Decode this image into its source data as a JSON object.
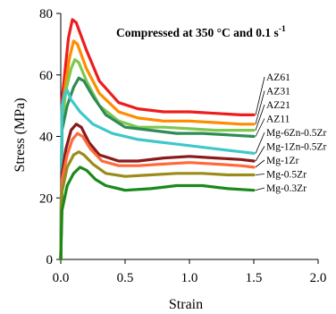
{
  "chart_data": {
    "type": "line",
    "title": "",
    "annotation": {
      "main": "Compressed at 350 °C and 0.1 s",
      "superscript": "-1"
    },
    "xlabel": "Strain",
    "ylabel": "Stress (MPa)",
    "xlim": [
      0,
      2.0
    ],
    "ylim": [
      0,
      80
    ],
    "xticks": [
      0,
      0.5,
      1.0,
      1.5,
      2.0
    ],
    "xtick_labels": [
      "0.0",
      "0.5",
      "1.0",
      "1.5",
      "2.0"
    ],
    "yticks": [
      0,
      20,
      40,
      60,
      80
    ],
    "ytick_labels": [
      "0",
      "20",
      "40",
      "60",
      "80"
    ],
    "grid": false,
    "legend_placement": "right of curve ends",
    "series": [
      {
        "name": "AZ61",
        "color": "#ee1c1c",
        "points": [
          [
            0,
            0
          ],
          [
            0.01,
            52
          ],
          [
            0.03,
            60
          ],
          [
            0.06,
            72
          ],
          [
            0.09,
            78
          ],
          [
            0.12,
            77
          ],
          [
            0.2,
            68
          ],
          [
            0.3,
            58
          ],
          [
            0.45,
            51
          ],
          [
            0.6,
            49
          ],
          [
            0.8,
            48
          ],
          [
            1.0,
            48
          ],
          [
            1.2,
            47.5
          ],
          [
            1.4,
            47
          ],
          [
            1.5,
            47
          ]
        ]
      },
      {
        "name": "AZ31",
        "color": "#ff8c00",
        "points": [
          [
            0,
            0
          ],
          [
            0.01,
            48
          ],
          [
            0.04,
            58
          ],
          [
            0.07,
            66
          ],
          [
            0.1,
            71
          ],
          [
            0.13,
            70
          ],
          [
            0.2,
            62
          ],
          [
            0.3,
            54
          ],
          [
            0.45,
            48
          ],
          [
            0.6,
            46
          ],
          [
            0.8,
            45
          ],
          [
            1.0,
            45
          ],
          [
            1.2,
            44.5
          ],
          [
            1.4,
            44
          ],
          [
            1.5,
            44
          ]
        ]
      },
      {
        "name": "AZ21",
        "color": "#7ec850",
        "points": [
          [
            0,
            0
          ],
          [
            0.01,
            44
          ],
          [
            0.04,
            55
          ],
          [
            0.08,
            62
          ],
          [
            0.11,
            65
          ],
          [
            0.14,
            64
          ],
          [
            0.2,
            58
          ],
          [
            0.3,
            50
          ],
          [
            0.45,
            45
          ],
          [
            0.6,
            43
          ],
          [
            0.8,
            43
          ],
          [
            1.0,
            42.5
          ],
          [
            1.2,
            42
          ],
          [
            1.4,
            42
          ],
          [
            1.5,
            42
          ]
        ]
      },
      {
        "name": "AZ11",
        "color": "#2e8b57",
        "points": [
          [
            0,
            0
          ],
          [
            0.01,
            42
          ],
          [
            0.05,
            50
          ],
          [
            0.1,
            56
          ],
          [
            0.14,
            59
          ],
          [
            0.18,
            58
          ],
          [
            0.25,
            53
          ],
          [
            0.35,
            47
          ],
          [
            0.5,
            43
          ],
          [
            0.7,
            42
          ],
          [
            0.9,
            41
          ],
          [
            1.1,
            41
          ],
          [
            1.3,
            40.5
          ],
          [
            1.5,
            40
          ]
        ]
      },
      {
        "name": "Mg-6Zn-0.5Zr",
        "color": "#40c8c8",
        "points": [
          [
            0,
            0
          ],
          [
            0.01,
            50
          ],
          [
            0.03,
            54
          ],
          [
            0.05,
            55
          ],
          [
            0.08,
            52
          ],
          [
            0.15,
            48
          ],
          [
            0.25,
            44
          ],
          [
            0.4,
            41
          ],
          [
            0.6,
            39
          ],
          [
            0.8,
            38
          ],
          [
            1.0,
            37
          ],
          [
            1.2,
            36
          ],
          [
            1.4,
            35
          ],
          [
            1.5,
            34.5
          ]
        ]
      },
      {
        "name": "Mg-1Zn-0.5Zr",
        "color": "#8b1a1a",
        "points": [
          [
            0,
            0
          ],
          [
            0.01,
            28
          ],
          [
            0.04,
            36
          ],
          [
            0.08,
            42
          ],
          [
            0.12,
            44
          ],
          [
            0.16,
            43
          ],
          [
            0.22,
            38
          ],
          [
            0.3,
            34
          ],
          [
            0.45,
            32
          ],
          [
            0.6,
            32
          ],
          [
            0.8,
            33
          ],
          [
            1.0,
            33.5
          ],
          [
            1.2,
            33
          ],
          [
            1.4,
            32.5
          ],
          [
            1.5,
            32
          ]
        ]
      },
      {
        "name": "Mg-1Zr",
        "color": "#ff6a3d",
        "points": [
          [
            0,
            0
          ],
          [
            0.01,
            26
          ],
          [
            0.05,
            34
          ],
          [
            0.09,
            39
          ],
          [
            0.13,
            41
          ],
          [
            0.17,
            40
          ],
          [
            0.23,
            36
          ],
          [
            0.32,
            32
          ],
          [
            0.45,
            30.5
          ],
          [
            0.6,
            30.5
          ],
          [
            0.8,
            31
          ],
          [
            1.0,
            31.5
          ],
          [
            1.2,
            31
          ],
          [
            1.4,
            30.5
          ],
          [
            1.5,
            30
          ]
        ]
      },
      {
        "name": "Mg-0.5Zr",
        "color": "#9a8c1a",
        "points": [
          [
            0,
            0
          ],
          [
            0.01,
            22
          ],
          [
            0.05,
            30
          ],
          [
            0.1,
            34
          ],
          [
            0.14,
            35
          ],
          [
            0.18,
            34
          ],
          [
            0.25,
            31
          ],
          [
            0.35,
            28
          ],
          [
            0.5,
            27
          ],
          [
            0.7,
            27.5
          ],
          [
            0.9,
            28
          ],
          [
            1.1,
            28
          ],
          [
            1.3,
            27.5
          ],
          [
            1.5,
            27.5
          ]
        ]
      },
      {
        "name": "Mg-0.3Zr",
        "color": "#1a8a1a",
        "points": [
          [
            0,
            0
          ],
          [
            0.01,
            16
          ],
          [
            0.05,
            24
          ],
          [
            0.1,
            28
          ],
          [
            0.15,
            30
          ],
          [
            0.2,
            29
          ],
          [
            0.27,
            26
          ],
          [
            0.35,
            24
          ],
          [
            0.5,
            22.5
          ],
          [
            0.7,
            23
          ],
          [
            0.9,
            24
          ],
          [
            1.1,
            24
          ],
          [
            1.3,
            23
          ],
          [
            1.5,
            22.5
          ]
        ]
      }
    ]
  }
}
